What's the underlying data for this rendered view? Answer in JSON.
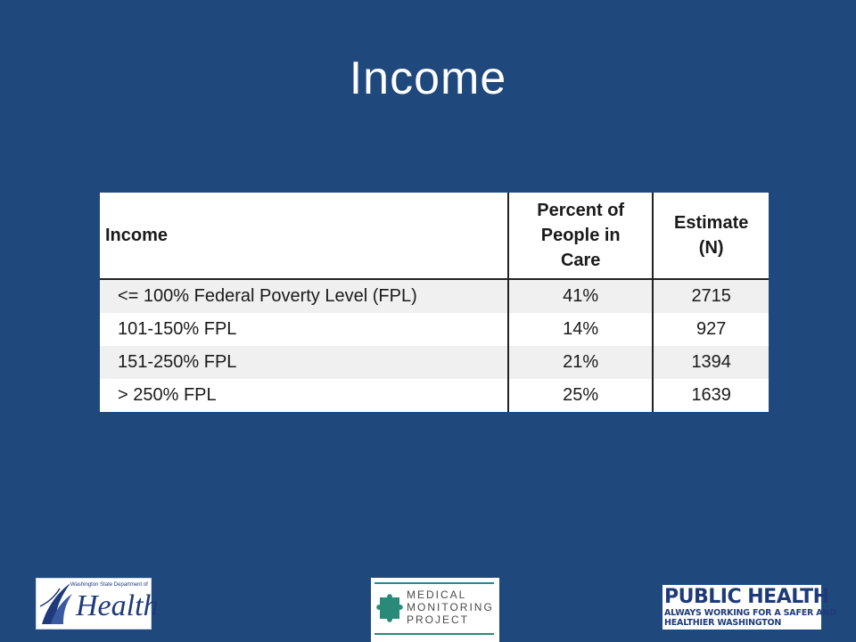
{
  "slide": {
    "title": "Income"
  },
  "table": {
    "headers": {
      "income": "Income",
      "percent_line1": "Percent of",
      "percent_line2": "People in",
      "percent_line3": "Care",
      "estimate_line1": "Estimate",
      "estimate_line2": "(N)"
    },
    "rows": [
      {
        "income": "<= 100% Federal Poverty Level (FPL)",
        "percent": "41%",
        "estimate": "2715"
      },
      {
        "income": "101-150% FPL",
        "percent": "14%",
        "estimate": "927"
      },
      {
        "income": "151-250% FPL",
        "percent": "21%",
        "estimate": "1394"
      },
      {
        "income": "> 250% FPL",
        "percent": "25%",
        "estimate": "1639"
      }
    ]
  },
  "logos": {
    "doh": {
      "small_text": "Washington State Department of",
      "big_text": "Health"
    },
    "mmp": {
      "line1": "MEDICAL",
      "line2": "MONITORING",
      "line3": "PROJECT"
    },
    "public_health": {
      "line1": "PUBLIC HEALTH",
      "line2": "ALWAYS WORKING FOR A SAFER AND",
      "line3": "HEALTHIER WASHINGTON"
    }
  },
  "colors": {
    "background": "#1f497d",
    "title_text": "#ffffff",
    "row_shade": "#f0f0f0",
    "logo_navy": "#1f3a7a",
    "logo_teal": "#2a8a7a"
  }
}
